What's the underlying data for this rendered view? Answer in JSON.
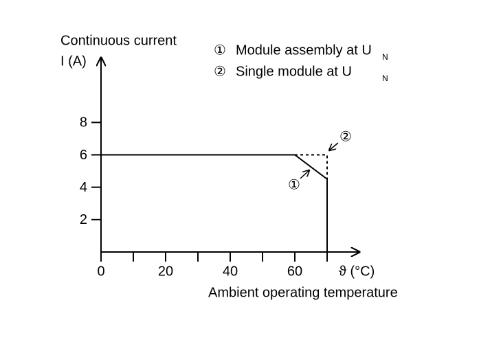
{
  "chart_data": {
    "type": "line",
    "y_label_lines": [
      "Continuous current",
      "I (A)"
    ],
    "x_unit_label": "ϑ (°C)",
    "x_label": "Ambient operating temperature",
    "xlim": [
      0,
      80
    ],
    "ylim": [
      0,
      12
    ],
    "xticks": [
      0,
      20,
      40,
      60
    ],
    "x_minor_ticks": [
      10,
      30,
      50,
      70
    ],
    "yticks": [
      2,
      4,
      6,
      8
    ],
    "series": [
      {
        "name": "Module assembly at U",
        "name_subscript": "N",
        "marker_label": "①",
        "color": "#000000",
        "dash": false,
        "x": [
          0,
          60,
          70,
          70
        ],
        "values": [
          6,
          6,
          4.5,
          0
        ]
      },
      {
        "name": "Single module at U",
        "name_subscript": "N",
        "marker_label": "②",
        "color": "#000000",
        "dash": true,
        "x": [
          60,
          70,
          70
        ],
        "values": [
          6,
          6,
          4.5
        ]
      }
    ]
  }
}
